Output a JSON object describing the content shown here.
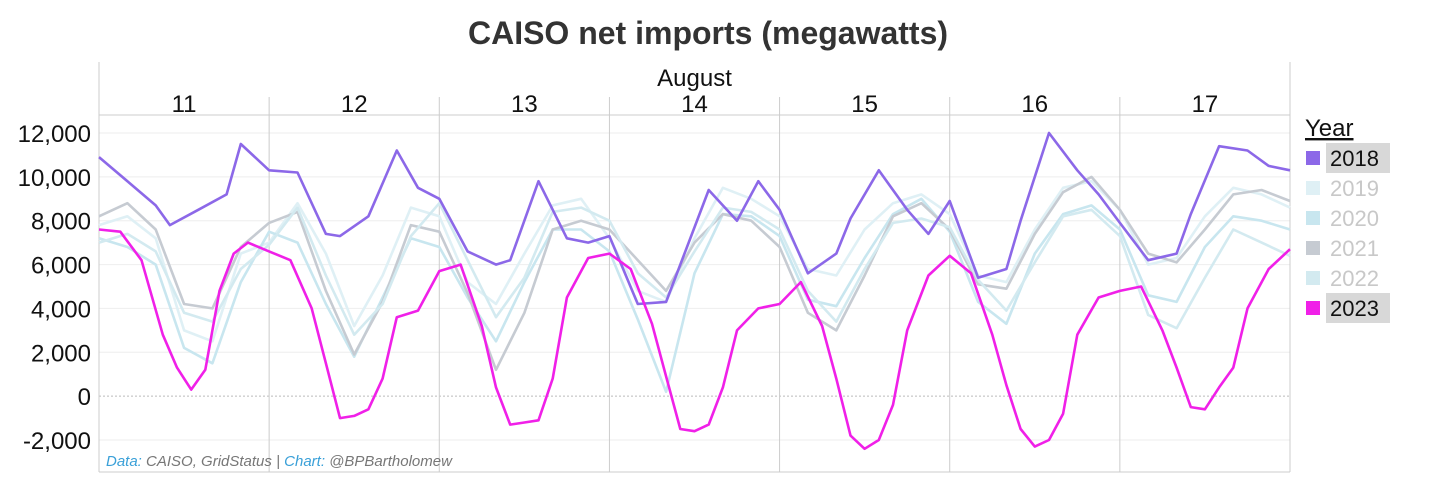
{
  "title": "CAISO net imports (megawatts)",
  "credit": {
    "data_label": "Data:",
    "data_source": " CAISO, GridStatus | ",
    "chart_label": "Chart:",
    "chart_author": " @BPBartholomew"
  },
  "chart_data": {
    "type": "line",
    "title": "CAISO net imports (megawatts)",
    "x_header": "August",
    "x_categories": [
      "11",
      "12",
      "13",
      "14",
      "15",
      "16",
      "17"
    ],
    "x_unit": "day of August (hours)",
    "xlim": [
      0,
      168
    ],
    "ylim": [
      -3000,
      12500
    ],
    "yticks": [
      -2000,
      0,
      2000,
      4000,
      6000,
      8000,
      10000,
      12000
    ],
    "ytick_labels": [
      "-2,000",
      "0",
      "2,000",
      "4,000",
      "6,000",
      "8,000",
      "10,000",
      "12,000"
    ],
    "grid": true,
    "legend_title": "Year",
    "legend_position": "right",
    "series": [
      {
        "name": "2018",
        "color": "#8c68e8",
        "highlighted": true,
        "x": [
          0,
          4,
          8,
          10,
          14,
          18,
          20,
          24,
          28,
          32,
          34,
          38,
          42,
          45,
          48,
          52,
          56,
          58,
          62,
          66,
          69,
          72,
          76,
          80,
          82,
          86,
          90,
          93,
          96,
          100,
          104,
          106,
          110,
          114,
          117,
          120,
          124,
          128,
          130,
          134,
          138,
          141,
          144,
          148,
          152,
          154,
          158,
          162,
          165,
          168
        ],
        "y": [
          10900,
          9800,
          8700,
          7800,
          8500,
          9200,
          11500,
          10300,
          10200,
          7400,
          7300,
          8200,
          11200,
          9500,
          9000,
          6600,
          6000,
          6200,
          9800,
          7200,
          7000,
          7300,
          4200,
          4300,
          6000,
          9400,
          8000,
          9800,
          8500,
          5600,
          6500,
          8100,
          10300,
          8500,
          7400,
          8900,
          5400,
          5800,
          8000,
          12000,
          10300,
          9200,
          7900,
          6200,
          6500,
          8300,
          11400,
          11200,
          10500,
          10300
        ]
      },
      {
        "name": "2019",
        "color": "#dff0f5",
        "highlighted": false,
        "x": [
          0,
          4,
          8,
          12,
          16,
          20,
          24,
          28,
          32,
          36,
          40,
          44,
          48,
          52,
          56,
          60,
          64,
          68,
          72,
          76,
          80,
          84,
          88,
          92,
          96,
          100,
          104,
          108,
          112,
          116,
          120,
          124,
          128,
          132,
          136,
          140,
          144,
          148,
          152,
          156,
          160,
          164,
          168
        ],
        "y": [
          7800,
          8200,
          7200,
          3000,
          2500,
          6500,
          7000,
          8800,
          6500,
          3200,
          5500,
          8600,
          8200,
          5200,
          4200,
          6500,
          8700,
          9000,
          7200,
          4800,
          4300,
          7200,
          9500,
          9000,
          8200,
          5800,
          5500,
          7600,
          8800,
          9200,
          8300,
          5500,
          5200,
          7600,
          9500,
          9800,
          8500,
          6000,
          6300,
          8200,
          9500,
          9200,
          8600
        ]
      },
      {
        "name": "2020",
        "color": "#c8e6ef",
        "highlighted": false,
        "x": [
          0,
          4,
          8,
          12,
          16,
          20,
          24,
          28,
          32,
          36,
          40,
          44,
          48,
          52,
          56,
          60,
          64,
          68,
          72,
          76,
          80,
          84,
          88,
          92,
          96,
          100,
          104,
          108,
          112,
          116,
          120,
          124,
          128,
          132,
          136,
          140,
          144,
          148,
          152,
          156,
          160,
          164,
          168
        ],
        "y": [
          7200,
          6800,
          6000,
          2200,
          1500,
          5200,
          7500,
          7000,
          4200,
          1800,
          4500,
          7200,
          6800,
          4500,
          2500,
          5200,
          7600,
          7600,
          6600,
          3500,
          200,
          5600,
          8300,
          8200,
          7300,
          4400,
          4100,
          6300,
          8300,
          9000,
          7500,
          4300,
          3300,
          6500,
          8300,
          8700,
          7600,
          4600,
          4300,
          6800,
          8200,
          8000,
          7600
        ]
      },
      {
        "name": "2021",
        "color": "#c6cbd2",
        "highlighted": false,
        "x": [
          0,
          4,
          8,
          12,
          16,
          20,
          24,
          28,
          32,
          36,
          40,
          44,
          48,
          52,
          56,
          60,
          64,
          68,
          72,
          76,
          80,
          84,
          88,
          92,
          96,
          100,
          104,
          108,
          112,
          116,
          120,
          124,
          128,
          132,
          136,
          140,
          144,
          148,
          152,
          156,
          160,
          164,
          168
        ],
        "y": [
          8200,
          8800,
          7600,
          4200,
          4000,
          6800,
          7900,
          8400,
          4800,
          1900,
          4300,
          7800,
          7500,
          4700,
          1200,
          3800,
          7600,
          8000,
          7600,
          6200,
          4800,
          7000,
          8300,
          8000,
          6800,
          3800,
          3000,
          5500,
          8200,
          8800,
          7600,
          5100,
          4900,
          7400,
          9300,
          10000,
          8500,
          6500,
          6100,
          7600,
          9200,
          9400,
          8900
        ]
      },
      {
        "name": "2022",
        "color": "#d3eaf0",
        "highlighted": false,
        "x": [
          0,
          4,
          8,
          12,
          16,
          20,
          24,
          28,
          32,
          36,
          40,
          44,
          48,
          52,
          56,
          60,
          64,
          68,
          72,
          76,
          80,
          84,
          88,
          92,
          96,
          100,
          104,
          108,
          112,
          116,
          120,
          124,
          128,
          132,
          136,
          140,
          144,
          148,
          152,
          156,
          160,
          164,
          168
        ],
        "y": [
          7000,
          7400,
          6600,
          3800,
          3400,
          5800,
          6900,
          8600,
          5500,
          2800,
          4200,
          7300,
          8800,
          6200,
          3600,
          5400,
          8400,
          8600,
          8000,
          5600,
          4500,
          6600,
          8600,
          8400,
          7600,
          4800,
          3400,
          5800,
          7900,
          8100,
          7700,
          5300,
          3900,
          6100,
          8200,
          8500,
          7300,
          3700,
          3100,
          5400,
          7600,
          7000,
          6400
        ]
      },
      {
        "name": "2023",
        "color": "#f020e8",
        "highlighted": true,
        "x": [
          0,
          3,
          6,
          9,
          11,
          13,
          15,
          17,
          19,
          21,
          24,
          27,
          30,
          32,
          34,
          36,
          38,
          40,
          42,
          45,
          48,
          51,
          54,
          56,
          58,
          60,
          62,
          64,
          66,
          69,
          72,
          75,
          78,
          80,
          82,
          84,
          86,
          88,
          90,
          93,
          96,
          99,
          102,
          104,
          106,
          108,
          110,
          112,
          114,
          117,
          120,
          123,
          126,
          128,
          130,
          132,
          134,
          136,
          138,
          141,
          144,
          147,
          150,
          152,
          154,
          156,
          158,
          160,
          162,
          165,
          168
        ],
        "y": [
          7600,
          7500,
          6200,
          2800,
          1300,
          300,
          1200,
          4800,
          6500,
          7000,
          6600,
          6200,
          4000,
          1500,
          -1000,
          -900,
          -600,
          800,
          3600,
          3900,
          5700,
          6000,
          3200,
          400,
          -1300,
          -1200,
          -1100,
          800,
          4500,
          6300,
          6500,
          5800,
          3300,
          900,
          -1500,
          -1600,
          -1300,
          400,
          3000,
          4000,
          4200,
          5200,
          3200,
          800,
          -1800,
          -2400,
          -2000,
          -400,
          3000,
          5500,
          6400,
          5600,
          2800,
          500,
          -1500,
          -2300,
          -2000,
          -800,
          2800,
          4500,
          4800,
          5000,
          3000,
          1300,
          -500,
          -600,
          400,
          1300,
          4000,
          5800,
          6700
        ]
      }
    ]
  }
}
